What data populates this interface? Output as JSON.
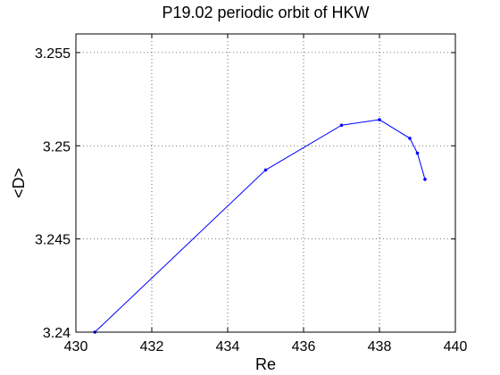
{
  "chart_data": {
    "type": "line",
    "title": "P19.02 periodic orbit of HKW",
    "xlabel": "Re",
    "ylabel": "<D>",
    "xlim": [
      430,
      440
    ],
    "ylim": [
      3.24,
      3.256
    ],
    "xticks": [
      430,
      432,
      434,
      436,
      438,
      440
    ],
    "yticks": [
      3.24,
      3.245,
      3.25,
      3.255
    ],
    "xtick_labels": [
      "430",
      "432",
      "434",
      "436",
      "438",
      "440"
    ],
    "ytick_labels": [
      "3.24",
      "3.245",
      "3.25",
      "3.255"
    ],
    "grid": true,
    "marker": "dot",
    "series": [
      {
        "x": [
          430.5,
          435.0,
          437.0,
          438.0,
          438.8,
          439.0,
          439.2
        ],
        "y": [
          3.24,
          3.2487,
          3.2511,
          3.2514,
          3.2504,
          3.2496,
          3.2482
        ],
        "color": "#0000ff"
      }
    ]
  }
}
